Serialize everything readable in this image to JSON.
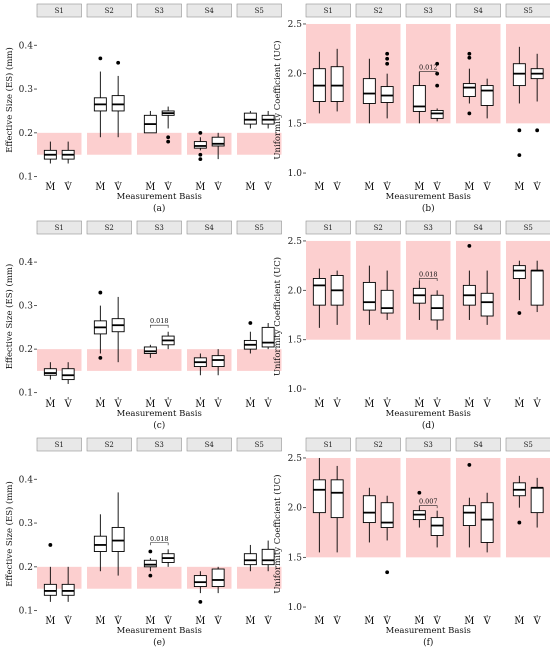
{
  "chart_data": [
    {
      "type": "boxplot",
      "caption": "(a)",
      "measure": "ES",
      "ylabel": "Effective Size (ES) (mm)",
      "xlabel": "Measurement Basis",
      "ylim": [
        0.09,
        0.46
      ],
      "yticks": [
        "0.1",
        "0.2",
        "0.3",
        "0.4"
      ],
      "yticks_values": [
        0.1,
        0.2,
        0.3,
        0.4
      ],
      "band": [
        0.15,
        0.2
      ],
      "categories": [
        "M",
        "V"
      ],
      "facets": [
        {
          "name": "S1",
          "boxes": [
            {
              "min": 0.13,
              "q1": 0.14,
              "median": 0.15,
              "q3": 0.16,
              "max": 0.18,
              "outliers": []
            },
            {
              "min": 0.13,
              "q1": 0.14,
              "median": 0.15,
              "q3": 0.16,
              "max": 0.18,
              "outliers": []
            }
          ]
        },
        {
          "name": "S2",
          "boxes": [
            {
              "min": 0.19,
              "q1": 0.25,
              "median": 0.265,
              "q3": 0.28,
              "max": 0.34,
              "outliers": [
                0.37
              ]
            },
            {
              "min": 0.19,
              "q1": 0.25,
              "median": 0.265,
              "q3": 0.285,
              "max": 0.33,
              "outliers": [
                0.36
              ]
            }
          ]
        },
        {
          "name": "S3",
          "boxes": [
            {
              "min": 0.2,
              "q1": 0.2,
              "median": 0.22,
              "q3": 0.24,
              "max": 0.25,
              "outliers": []
            },
            {
              "min": 0.21,
              "q1": 0.24,
              "median": 0.245,
              "q3": 0.25,
              "max": 0.26,
              "outliers": [
                0.19,
                0.18
              ]
            }
          ]
        },
        {
          "name": "S4",
          "boxes": [
            {
              "min": 0.16,
              "q1": 0.165,
              "median": 0.17,
              "q3": 0.18,
              "max": 0.19,
              "outliers": [
                0.2,
                0.15,
                0.14
              ]
            },
            {
              "min": 0.14,
              "q1": 0.17,
              "median": 0.175,
              "q3": 0.19,
              "max": 0.2,
              "outliers": []
            }
          ]
        },
        {
          "name": "S5",
          "boxes": [
            {
              "min": 0.21,
              "q1": 0.22,
              "median": 0.23,
              "q3": 0.245,
              "max": 0.25,
              "outliers": []
            },
            {
              "min": 0.21,
              "q1": 0.22,
              "median": 0.23,
              "q3": 0.24,
              "max": 0.25,
              "outliers": []
            }
          ]
        }
      ],
      "annotations": []
    },
    {
      "type": "boxplot",
      "caption": "(b)",
      "measure": "UC",
      "ylabel": "Uniformity Coefficient (UC)",
      "xlabel": "Measurement Basis",
      "ylim": [
        0.92,
        2.55
      ],
      "yticks": [
        "1.0",
        "1.5",
        "2.0",
        "2.5"
      ],
      "yticks_values": [
        1.0,
        1.5,
        2.0,
        2.5
      ],
      "band": [
        1.5,
        2.5
      ],
      "categories": [
        "M",
        "V"
      ],
      "facets": [
        {
          "name": "S1",
          "boxes": [
            {
              "min": 1.6,
              "q1": 1.72,
              "median": 1.88,
              "q3": 2.05,
              "max": 2.22,
              "outliers": []
            },
            {
              "min": 1.62,
              "q1": 1.72,
              "median": 1.88,
              "q3": 2.07,
              "max": 2.25,
              "outliers": []
            }
          ]
        },
        {
          "name": "S2",
          "boxes": [
            {
              "min": 1.5,
              "q1": 1.7,
              "median": 1.8,
              "q3": 1.95,
              "max": 2.15,
              "outliers": []
            },
            {
              "min": 1.55,
              "q1": 1.71,
              "median": 1.78,
              "q3": 1.87,
              "max": 2.0,
              "outliers": [
                2.2,
                2.15,
                2.1
              ]
            }
          ]
        },
        {
          "name": "S3",
          "boxes": [
            {
              "min": 1.5,
              "q1": 1.62,
              "median": 1.67,
              "q3": 1.88,
              "max": 2.02,
              "outliers": []
            },
            {
              "min": 1.52,
              "q1": 1.55,
              "median": 1.6,
              "q3": 1.63,
              "max": 1.65,
              "outliers": [
                2.1,
                2.0,
                1.88
              ]
            }
          ]
        },
        {
          "name": "S4",
          "boxes": [
            {
              "min": 1.7,
              "q1": 1.77,
              "median": 1.86,
              "q3": 1.9,
              "max": 2.05,
              "outliers": [
                2.2,
                2.16,
                1.6
              ]
            },
            {
              "min": 1.55,
              "q1": 1.68,
              "median": 1.83,
              "q3": 1.88,
              "max": 1.95,
              "outliers": []
            }
          ]
        },
        {
          "name": "S5",
          "boxes": [
            {
              "min": 1.7,
              "q1": 1.88,
              "median": 2.0,
              "q3": 2.1,
              "max": 2.27,
              "outliers": [
                1.43,
                1.18
              ]
            },
            {
              "min": 1.72,
              "q1": 1.95,
              "median": 2.0,
              "q3": 2.05,
              "max": 2.2,
              "outliers": [
                1.43
              ]
            }
          ]
        }
      ],
      "annotations": [
        {
          "facet": 2,
          "text": "0.012",
          "y": 2.02
        }
      ]
    },
    {
      "type": "boxplot",
      "caption": "(c)",
      "measure": "ES",
      "ylabel": "Effective Size (ES) (mm)",
      "xlabel": "Measurement Basis",
      "ylim": [
        0.09,
        0.46
      ],
      "yticks": [
        "0.1",
        "0.2",
        "0.3",
        "0.4"
      ],
      "yticks_values": [
        0.1,
        0.2,
        0.3,
        0.4
      ],
      "band": [
        0.15,
        0.2
      ],
      "categories": [
        "M",
        "V"
      ],
      "facets": [
        {
          "name": "S1",
          "boxes": [
            {
              "min": 0.13,
              "q1": 0.14,
              "median": 0.145,
              "q3": 0.155,
              "max": 0.17,
              "outliers": []
            },
            {
              "min": 0.12,
              "q1": 0.13,
              "median": 0.14,
              "q3": 0.155,
              "max": 0.17,
              "outliers": []
            }
          ]
        },
        {
          "name": "S2",
          "boxes": [
            {
              "min": 0.19,
              "q1": 0.235,
              "median": 0.25,
              "q3": 0.265,
              "max": 0.3,
              "outliers": [
                0.33,
                0.18
              ]
            },
            {
              "min": 0.17,
              "q1": 0.24,
              "median": 0.255,
              "q3": 0.27,
              "max": 0.32,
              "outliers": []
            }
          ]
        },
        {
          "name": "S3",
          "boxes": [
            {
              "min": 0.18,
              "q1": 0.19,
              "median": 0.195,
              "q3": 0.205,
              "max": 0.21,
              "outliers": []
            },
            {
              "min": 0.2,
              "q1": 0.21,
              "median": 0.22,
              "q3": 0.23,
              "max": 0.24,
              "outliers": []
            }
          ]
        },
        {
          "name": "S4",
          "boxes": [
            {
              "min": 0.14,
              "q1": 0.16,
              "median": 0.17,
              "q3": 0.18,
              "max": 0.19,
              "outliers": []
            },
            {
              "min": 0.14,
              "q1": 0.16,
              "median": 0.175,
              "q3": 0.185,
              "max": 0.2,
              "outliers": []
            }
          ]
        },
        {
          "name": "S5",
          "boxes": [
            {
              "min": 0.19,
              "q1": 0.2,
              "median": 0.21,
              "q3": 0.22,
              "max": 0.24,
              "outliers": [
                0.26
              ]
            },
            {
              "min": 0.2,
              "q1": 0.205,
              "median": 0.215,
              "q3": 0.25,
              "max": 0.26,
              "outliers": []
            }
          ]
        }
      ],
      "annotations": [
        {
          "facet": 2,
          "text": "0.018",
          "y": 0.255
        }
      ]
    },
    {
      "type": "boxplot",
      "caption": "(d)",
      "measure": "UC",
      "ylabel": "Uniformity Coefficient (UC)",
      "xlabel": "Measurement Basis",
      "ylim": [
        0.92,
        2.55
      ],
      "yticks": [
        "1.0",
        "1.5",
        "2.0",
        "2.5"
      ],
      "yticks_values": [
        1.0,
        1.5,
        2.0,
        2.5
      ],
      "band": [
        1.5,
        2.5
      ],
      "categories": [
        "M",
        "V"
      ],
      "facets": [
        {
          "name": "S1",
          "boxes": [
            {
              "min": 1.62,
              "q1": 1.85,
              "median": 2.05,
              "q3": 2.12,
              "max": 2.22,
              "outliers": []
            },
            {
              "min": 1.65,
              "q1": 1.85,
              "median": 2.0,
              "q3": 2.15,
              "max": 2.2,
              "outliers": []
            }
          ]
        },
        {
          "name": "S2",
          "boxes": [
            {
              "min": 1.65,
              "q1": 1.8,
              "median": 1.88,
              "q3": 2.08,
              "max": 2.25,
              "outliers": []
            },
            {
              "min": 1.7,
              "q1": 1.77,
              "median": 1.82,
              "q3": 2.0,
              "max": 2.2,
              "outliers": []
            }
          ]
        },
        {
          "name": "S3",
          "boxes": [
            {
              "min": 1.7,
              "q1": 1.87,
              "median": 1.95,
              "q3": 2.02,
              "max": 2.1,
              "outliers": []
            },
            {
              "min": 1.6,
              "q1": 1.7,
              "median": 1.82,
              "q3": 1.95,
              "max": 2.0,
              "outliers": []
            }
          ]
        },
        {
          "name": "S4",
          "boxes": [
            {
              "min": 1.7,
              "q1": 1.85,
              "median": 1.95,
              "q3": 2.05,
              "max": 2.2,
              "outliers": [
                2.45
              ]
            },
            {
              "min": 1.65,
              "q1": 1.74,
              "median": 1.88,
              "q3": 1.97,
              "max": 2.2,
              "outliers": []
            }
          ]
        },
        {
          "name": "S5",
          "boxes": [
            {
              "min": 1.9,
              "q1": 2.12,
              "median": 2.2,
              "q3": 2.25,
              "max": 2.3,
              "outliers": [
                1.77
              ]
            },
            {
              "min": 1.78,
              "q1": 1.85,
              "median": 2.2,
              "q3": 2.2,
              "max": 2.3,
              "outliers": []
            }
          ]
        }
      ],
      "annotations": [
        {
          "facet": 2,
          "text": "0.018",
          "y": 2.12
        }
      ]
    },
    {
      "type": "boxplot",
      "caption": "(e)",
      "measure": "ES",
      "ylabel": "Effective Size (ES) (mm)",
      "xlabel": "Measurement Basis",
      "ylim": [
        0.09,
        0.46
      ],
      "yticks": [
        "0.1",
        "0.2",
        "0.3",
        "0.4"
      ],
      "yticks_values": [
        0.1,
        0.2,
        0.3,
        0.4
      ],
      "band": [
        0.15,
        0.2
      ],
      "categories": [
        "M",
        "V"
      ],
      "facets": [
        {
          "name": "S1",
          "boxes": [
            {
              "min": 0.12,
              "q1": 0.135,
              "median": 0.145,
              "q3": 0.16,
              "max": 0.2,
              "outliers": [
                0.25
              ]
            },
            {
              "min": 0.12,
              "q1": 0.135,
              "median": 0.145,
              "q3": 0.16,
              "max": 0.2,
              "outliers": []
            }
          ]
        },
        {
          "name": "S2",
          "boxes": [
            {
              "min": 0.19,
              "q1": 0.235,
              "median": 0.25,
              "q3": 0.27,
              "max": 0.32,
              "outliers": []
            },
            {
              "min": 0.18,
              "q1": 0.235,
              "median": 0.26,
              "q3": 0.29,
              "max": 0.37,
              "outliers": []
            }
          ]
        },
        {
          "name": "S3",
          "boxes": [
            {
              "min": 0.19,
              "q1": 0.2,
              "median": 0.205,
              "q3": 0.215,
              "max": 0.22,
              "outliers": [
                0.235,
                0.18
              ]
            },
            {
              "min": 0.2,
              "q1": 0.21,
              "median": 0.22,
              "q3": 0.23,
              "max": 0.24,
              "outliers": []
            }
          ]
        },
        {
          "name": "S4",
          "boxes": [
            {
              "min": 0.14,
              "q1": 0.155,
              "median": 0.165,
              "q3": 0.18,
              "max": 0.19,
              "outliers": [
                0.12
              ]
            },
            {
              "min": 0.14,
              "q1": 0.155,
              "median": 0.17,
              "q3": 0.195,
              "max": 0.2,
              "outliers": []
            }
          ]
        },
        {
          "name": "S5",
          "boxes": [
            {
              "min": 0.19,
              "q1": 0.205,
              "median": 0.215,
              "q3": 0.23,
              "max": 0.25,
              "outliers": []
            },
            {
              "min": 0.19,
              "q1": 0.205,
              "median": 0.215,
              "q3": 0.24,
              "max": 0.26,
              "outliers": []
            }
          ]
        }
      ],
      "annotations": [
        {
          "facet": 2,
          "text": "0.018",
          "y": 0.255
        }
      ]
    },
    {
      "type": "boxplot",
      "caption": "(f)",
      "measure": "UC",
      "ylabel": "Uniformity Coefficient (UC)",
      "xlabel": "Measurement Basis",
      "ylim": [
        0.92,
        2.55
      ],
      "yticks": [
        "1.0",
        "1.5",
        "2.0",
        "2.5"
      ],
      "yticks_values": [
        1.0,
        1.5,
        2.0,
        2.5
      ],
      "band": [
        1.5,
        2.5
      ],
      "categories": [
        "M",
        "V"
      ],
      "facets": [
        {
          "name": "S1",
          "boxes": [
            {
              "min": 1.55,
              "q1": 1.95,
              "median": 2.18,
              "q3": 2.28,
              "max": 2.5,
              "outliers": []
            },
            {
              "min": 1.55,
              "q1": 1.9,
              "median": 2.15,
              "q3": 2.28,
              "max": 2.42,
              "outliers": []
            }
          ]
        },
        {
          "name": "S2",
          "boxes": [
            {
              "min": 1.65,
              "q1": 1.85,
              "median": 1.95,
              "q3": 2.12,
              "max": 2.2,
              "outliers": []
            },
            {
              "min": 1.67,
              "q1": 1.8,
              "median": 1.85,
              "q3": 2.05,
              "max": 2.12,
              "outliers": [
                1.35
              ]
            }
          ]
        },
        {
          "name": "S3",
          "boxes": [
            {
              "min": 1.8,
              "q1": 1.88,
              "median": 1.93,
              "q3": 1.97,
              "max": 2.02,
              "outliers": [
                2.15
              ]
            },
            {
              "min": 1.6,
              "q1": 1.72,
              "median": 1.82,
              "q3": 1.9,
              "max": 1.97,
              "outliers": []
            }
          ]
        },
        {
          "name": "S4",
          "boxes": [
            {
              "min": 1.6,
              "q1": 1.82,
              "median": 1.95,
              "q3": 2.02,
              "max": 2.1,
              "outliers": [
                2.43
              ]
            },
            {
              "min": 1.55,
              "q1": 1.65,
              "median": 1.88,
              "q3": 2.05,
              "max": 2.15,
              "outliers": []
            }
          ]
        },
        {
          "name": "S5",
          "boxes": [
            {
              "min": 2.0,
              "q1": 2.12,
              "median": 2.18,
              "q3": 2.25,
              "max": 2.32,
              "outliers": [
                1.85
              ]
            },
            {
              "min": 1.8,
              "q1": 1.95,
              "median": 2.2,
              "q3": 2.2,
              "max": 2.3,
              "outliers": []
            }
          ]
        }
      ],
      "annotations": [
        {
          "facet": 2,
          "text": "0.007",
          "y": 2.02
        }
      ]
    }
  ],
  "colors": {
    "band": "#fccfcf",
    "strip_bg": "#e8e8e8",
    "strip_border": "#8f8f8f",
    "box_stroke": "#000000",
    "box_fill": "#ffffff",
    "outlier": "#000000"
  }
}
